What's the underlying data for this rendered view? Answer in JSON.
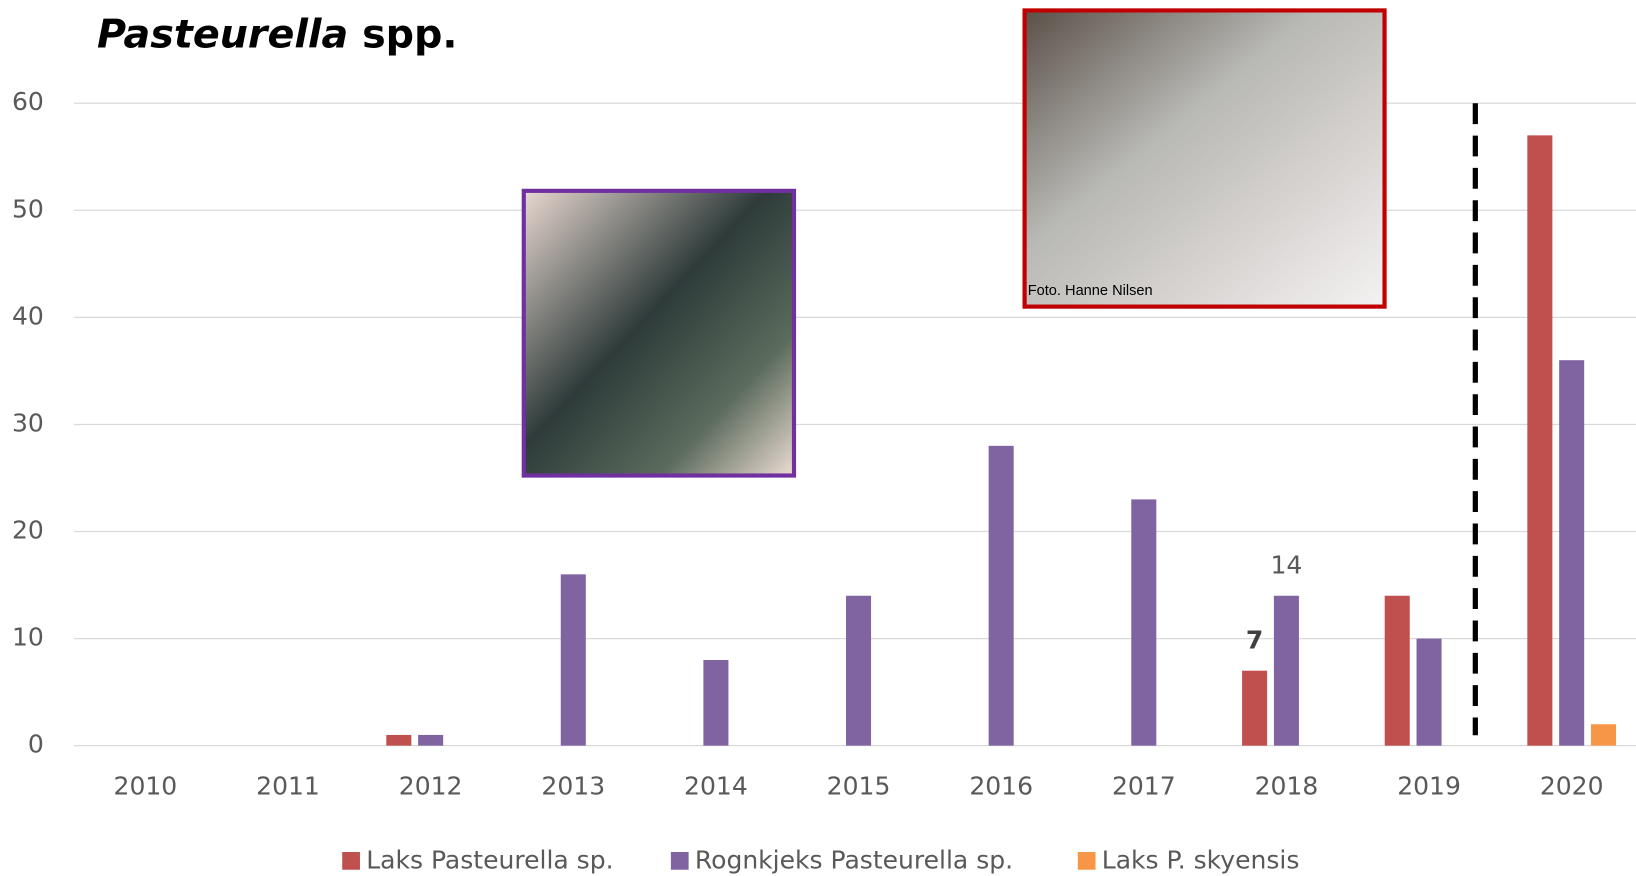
{
  "chart_data": {
    "type": "bar",
    "title_parts": [
      "Pasteurella",
      "spp."
    ],
    "categories": [
      "2010",
      "2011",
      "2012",
      "2013",
      "2014",
      "2015",
      "2016",
      "2017",
      "2018",
      "2019",
      "2020"
    ],
    "series": [
      {
        "name": "Laks Pasteurella sp.",
        "color": "#c0504d",
        "values": [
          0,
          0,
          1,
          0,
          0,
          0,
          0,
          0,
          7,
          14,
          57
        ],
        "value_labels": [
          null,
          null,
          null,
          null,
          null,
          null,
          null,
          null,
          "7",
          null,
          null
        ]
      },
      {
        "name": "Rognkjeks Pasteurella sp.",
        "color": "#8064a2",
        "values": [
          0,
          0,
          1,
          16,
          8,
          14,
          28,
          23,
          14,
          10,
          36
        ],
        "value_labels": [
          null,
          null,
          null,
          null,
          null,
          null,
          null,
          null,
          "14",
          null,
          null
        ]
      },
      {
        "name": "Laks P. skyensis",
        "color": "#f79646",
        "values": [
          0,
          0,
          0,
          0,
          0,
          0,
          0,
          0,
          0,
          0,
          2
        ]
      }
    ],
    "ylim": [
      0,
      60
    ],
    "yticks": [
      0,
      10,
      20,
      30,
      40,
      50,
      60
    ],
    "grid": true,
    "legend": "bottom",
    "photo_caption": "Foto. Hanne Nilsen"
  }
}
